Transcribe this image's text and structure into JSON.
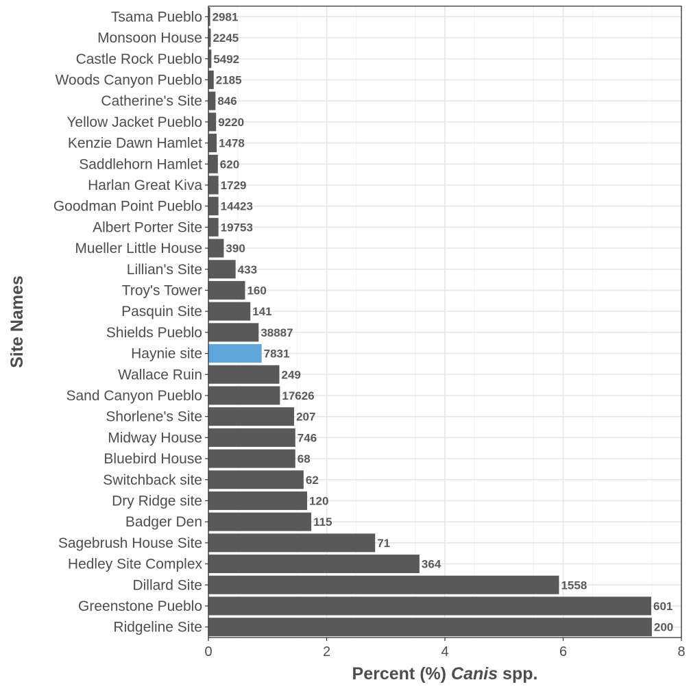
{
  "chart_data": {
    "type": "bar",
    "orientation": "horizontal",
    "xlabel_parts": [
      {
        "text": "Percent (%) ",
        "italic": false
      },
      {
        "text": "Canis",
        "italic": true
      },
      {
        "text": " spp.",
        "italic": false
      }
    ],
    "ylabel": "Site Names",
    "xlim": [
      0,
      8
    ],
    "xticks": [
      0,
      2,
      4,
      6,
      8
    ],
    "grid": true,
    "legend": "none",
    "bar_color": "#595959",
    "highlight_color": "#5DA5DA",
    "highlight_category": "Haynie site",
    "categories": [
      "Tsama Pueblo",
      "Monsoon House",
      "Castle Rock Pueblo",
      "Woods Canyon Pueblo",
      "Catherine's Site",
      "Yellow Jacket Pueblo",
      "Kenzie Dawn Hamlet",
      "Saddlehorn Hamlet",
      "Harlan Great Kiva",
      "Goodman Point Pueblo",
      "Albert Porter Site",
      "Mueller Little House",
      "Lillian's Site",
      "Troy's Tower",
      "Pasquin Site",
      "Shields Pueblo",
      "Haynie site",
      "Wallace Ruin",
      "Sand Canyon Pueblo",
      "Shorlene's Site",
      "Midway House",
      "Bluebird House",
      "Switchback site",
      "Dry Ridge site",
      "Badger Den",
      "Sagebrush House Site",
      "Hedley Site Complex",
      "Dillard Site",
      "Greenstone Pueblo",
      "Ridgeline Site"
    ],
    "values": [
      0.03,
      0.04,
      0.05,
      0.09,
      0.12,
      0.13,
      0.14,
      0.16,
      0.17,
      0.17,
      0.17,
      0.26,
      0.46,
      0.62,
      0.71,
      0.85,
      0.9,
      1.2,
      1.21,
      1.45,
      1.47,
      1.47,
      1.61,
      1.67,
      1.74,
      2.82,
      3.57,
      5.93,
      7.49,
      7.5
    ],
    "bar_labels": [
      "2981",
      "2245",
      "5492",
      "2185",
      "846",
      "9220",
      "1478",
      "620",
      "1729",
      "14423",
      "19753",
      "390",
      "433",
      "160",
      "141",
      "38887",
      "7831",
      "249",
      "17626",
      "207",
      "746",
      "68",
      "62",
      "120",
      "115",
      "71",
      "364",
      "1558",
      "601",
      "200"
    ]
  }
}
